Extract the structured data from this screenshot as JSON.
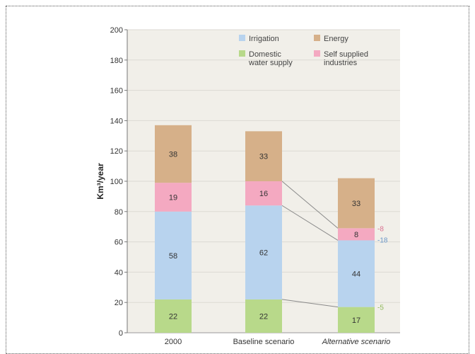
{
  "chart_data": {
    "type": "bar",
    "stacked": true,
    "ylabel": "Km³/year",
    "ylim": [
      0,
      200
    ],
    "yticks": [
      0,
      20,
      40,
      60,
      80,
      100,
      120,
      140,
      160,
      180,
      200
    ],
    "categories": [
      "2000",
      "Baseline scenario",
      "Alternative scenario"
    ],
    "category_styles": [
      "normal",
      "normal",
      "italic"
    ],
    "series": [
      {
        "name": "Domestic water supply",
        "legend_lines": [
          "Domestic",
          "water supply"
        ],
        "color": "#b8d98a",
        "values": [
          22,
          22,
          17
        ]
      },
      {
        "name": "Irrigation",
        "legend_lines": [
          "Irrigation"
        ],
        "color": "#b8d3ee",
        "values": [
          58,
          62,
          44
        ]
      },
      {
        "name": "Self supplied industries",
        "legend_lines": [
          "Self supplied",
          "industries"
        ],
        "color": "#f4a9c1",
        "values": [
          19,
          16,
          8
        ]
      },
      {
        "name": "Energy",
        "legend_lines": [
          "Energy"
        ],
        "color": "#d6b089",
        "values": [
          38,
          33,
          33
        ]
      }
    ],
    "annotations": [
      {
        "text": "-8",
        "series": "Self supplied industries",
        "color": "#d9708f"
      },
      {
        "text": "-18",
        "series": "Irrigation",
        "color": "#6a96c8"
      },
      {
        "text": "-5",
        "series": "Domestic water supply",
        "color": "#8fb85a"
      }
    ],
    "grid": true,
    "legend_position": "top-right"
  }
}
